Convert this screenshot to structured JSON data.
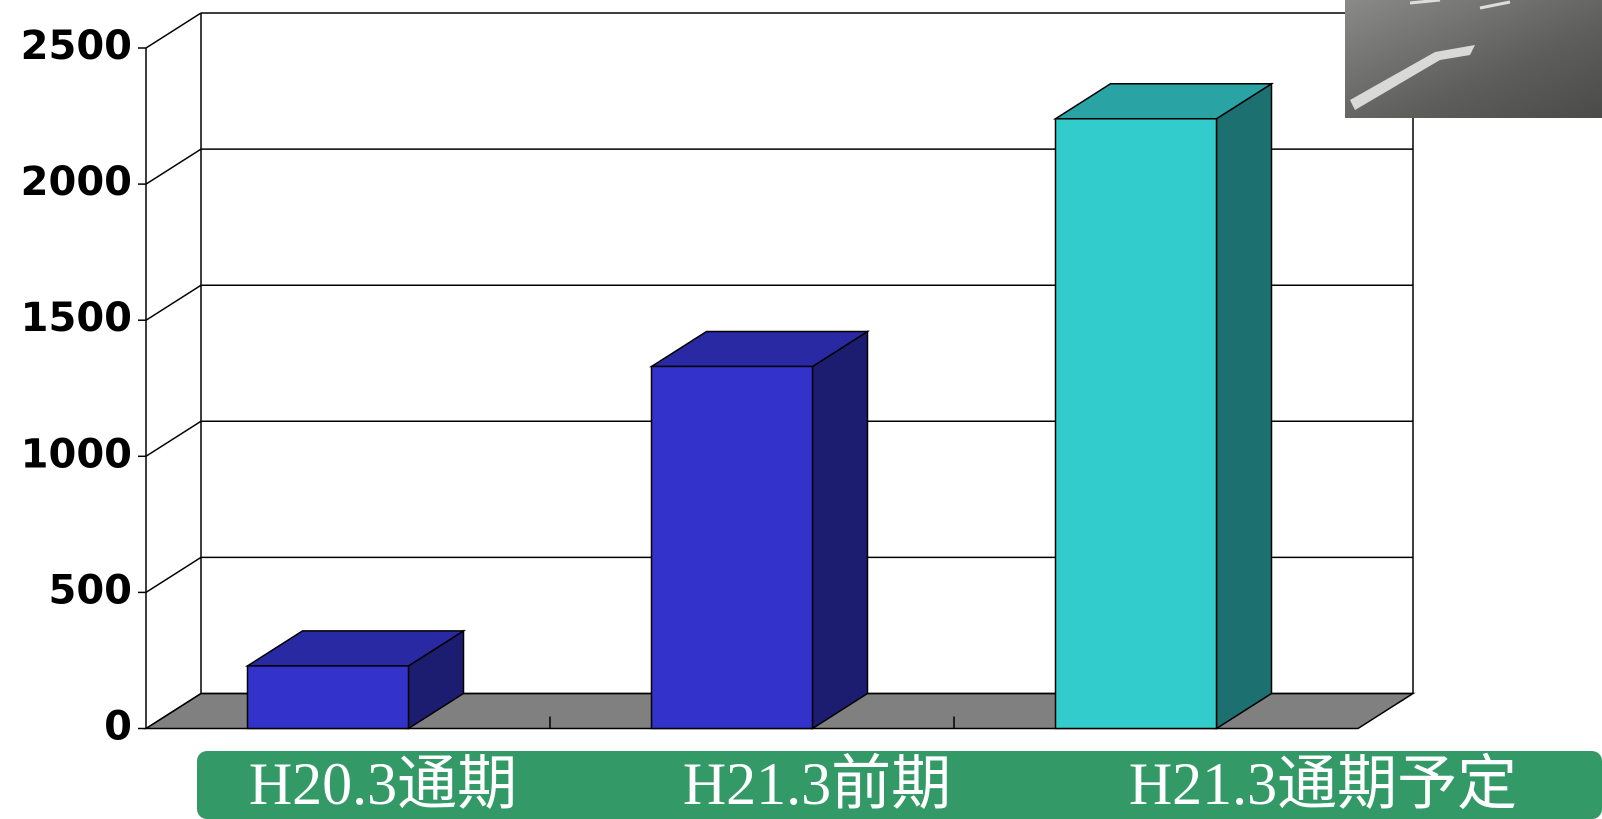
{
  "chart_data": {
    "type": "bar3d",
    "categories": [
      "H20.3通期",
      "H21.3前期",
      "H21.3通期予定"
    ],
    "values": [
      230,
      1330,
      2240
    ],
    "colors": [
      "#3333cc",
      "#3333cc",
      "#33cccc"
    ],
    "ylim": [
      0,
      2500
    ],
    "yticks": [
      0,
      500,
      1000,
      1500,
      2000,
      2500
    ],
    "grid": true
  }
}
